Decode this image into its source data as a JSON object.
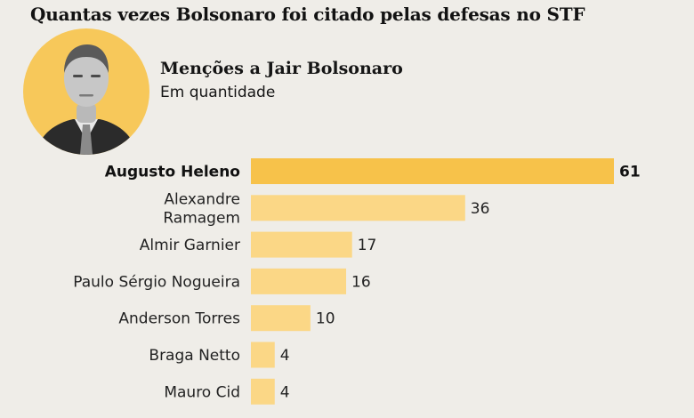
{
  "header": {
    "headline": "Quantas vezes Bolsonaro foi citado pelas defesas no STF",
    "subtitle": "Menções a Jair Bolsonaro",
    "unit": "Em quantidade"
  },
  "colors": {
    "highlight_bar": "#f7c24a",
    "bar": "#fbd786",
    "background": "#efede8",
    "portrait_bg": "#f7c85a"
  },
  "chart_data": {
    "type": "bar",
    "orientation": "horizontal",
    "title": "Quantas vezes Bolsonaro foi citado pelas defesas no STF",
    "subtitle": "Menções a Jair Bolsonaro",
    "unit": "Em quantidade",
    "categories": [
      [
        "Augusto Heleno"
      ],
      [
        "Alexandre",
        "Ramagem"
      ],
      [
        "Almir Garnier"
      ],
      [
        "Paulo Sérgio Nogueira"
      ],
      [
        "Anderson Torres"
      ],
      [
        "Braga Netto"
      ],
      [
        "Mauro Cid"
      ]
    ],
    "values": [
      61,
      36,
      17,
      16,
      10,
      4,
      4
    ],
    "highlight_index": 0,
    "xlim": [
      0,
      61
    ],
    "grid": false,
    "legend": "none"
  }
}
